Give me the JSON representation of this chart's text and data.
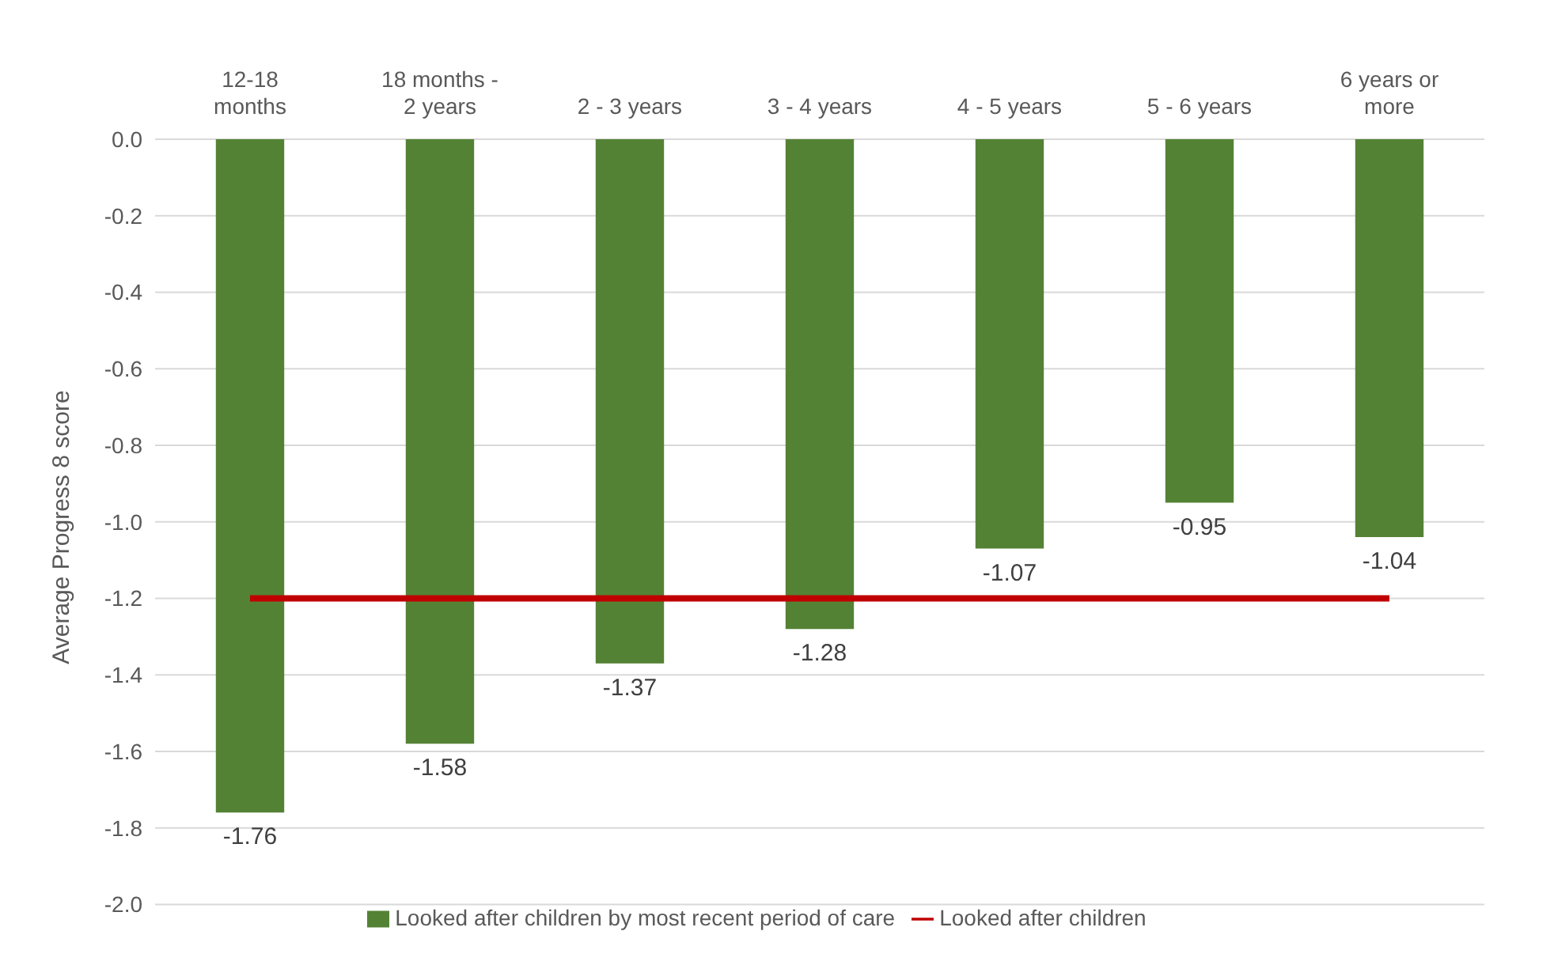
{
  "chart_data": {
    "type": "bar",
    "ylabel": "Average Progress 8 score",
    "categories": [
      "12-18 months",
      "18 months - 2 years",
      "2 - 3 years",
      "3 - 4 years",
      "4 - 5 years",
      "5 - 6 years",
      "6 years or more"
    ],
    "series": [
      {
        "name": "Looked after children by most recent period of care",
        "color": "#548235",
        "values": [
          -1.76,
          -1.58,
          -1.37,
          -1.28,
          -1.07,
          -0.95,
          -1.04
        ],
        "value_labels": [
          "-1.76",
          "-1.58",
          "-1.37",
          "-1.28",
          "-1.07",
          "-0.95",
          "-1.04"
        ]
      },
      {
        "name": "Looked after children",
        "type": "line",
        "color": "#c00000",
        "values": [
          -1.2,
          -1.2,
          -1.2,
          -1.2,
          -1.2,
          -1.2,
          -1.2
        ]
      }
    ],
    "ylim": [
      -2,
      0
    ],
    "yticks": [
      {
        "value": 0,
        "label": "0.0"
      },
      {
        "value": -0.2,
        "label": "-0.2"
      },
      {
        "value": -0.4,
        "label": "-0.4"
      },
      {
        "value": -0.6,
        "label": "-0.6"
      },
      {
        "value": -0.8,
        "label": "-0.8"
      },
      {
        "value": -1,
        "label": "-1.0"
      },
      {
        "value": -1.2,
        "label": "-1.2"
      },
      {
        "value": -1.4,
        "label": "-1.4"
      },
      {
        "value": -1.6,
        "label": "-1.6"
      },
      {
        "value": -1.8,
        "label": "-1.8"
      },
      {
        "value": -2,
        "label": "-2.0"
      }
    ],
    "grid": "y",
    "legend": "bottom",
    "marker": "none",
    "line_style": "solid"
  }
}
